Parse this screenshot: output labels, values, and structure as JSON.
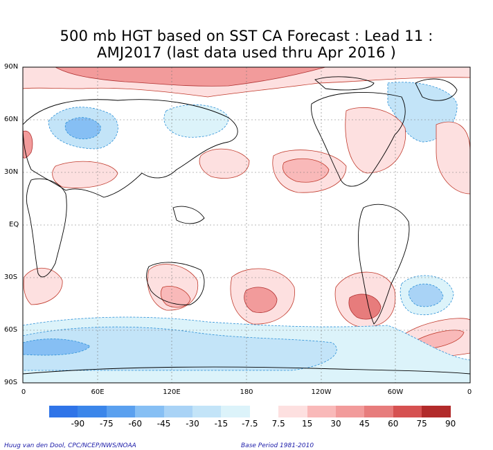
{
  "title_line1": "500 mb HGT based on SST CA Forecast : Lead 11 :",
  "title_line2": "AMJ2017 (last data used thru Apr 2016 )",
  "lat_labels": [
    "90N",
    "60N",
    "30N",
    "EQ",
    "30S",
    "60S",
    "90S"
  ],
  "lon_labels": [
    "0",
    "60E",
    "120E",
    "180",
    "120W",
    "60W",
    "0"
  ],
  "colorbar": {
    "labels": [
      "-90",
      "-75",
      "-60",
      "-45",
      "-30",
      "-15",
      "-7.5",
      "7.5",
      "15",
      "30",
      "45",
      "60",
      "75",
      "90"
    ],
    "colors": [
      "#2f74e8",
      "#3b86ea",
      "#5aa0ef",
      "#86bff4",
      "#a9d3f6",
      "#c3e4f8",
      "#dcf3fa",
      "#ffffff",
      "#fde0e0",
      "#f9b9b9",
      "#f29b9b",
      "#e77c7c",
      "#d65151",
      "#b22b2b"
    ]
  },
  "credit_left": "Huug van den Dool, CPC/NCEP/NWS/NOAA",
  "credit_right": "Base Period 1981-2010"
}
